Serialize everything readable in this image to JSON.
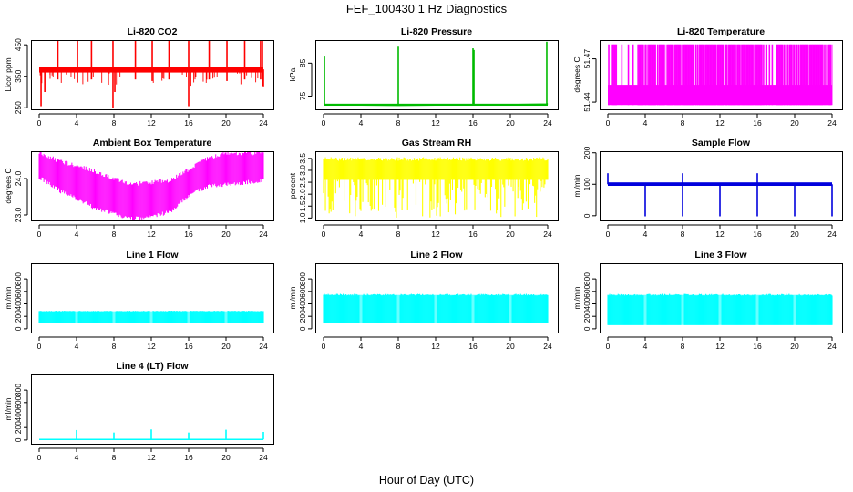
{
  "figure": {
    "title": "FEF_100430  1 Hz Diagnostics",
    "xlabel": "Hour of Day (UTC)"
  },
  "chart_data": [
    {
      "type": "line",
      "title": "Li-820 CO2",
      "ylabel": "Licor ppm",
      "color": "#ff0000",
      "xlim": [
        0,
        24
      ],
      "ylim": [
        245,
        465
      ],
      "xticks": [
        "0",
        "4",
        "8",
        "12",
        "16",
        "20",
        "24"
      ],
      "yticks": [
        {
          "v": 250,
          "l": "250"
        },
        {
          "v": 350,
          "l": "350"
        },
        {
          "v": 450,
          "l": "450"
        }
      ],
      "baseline": [
        [
          0,
          372
        ],
        [
          24,
          372
        ]
      ],
      "band": [
        362,
        380
      ],
      "spikes": [
        {
          "x": 0.2,
          "lo": 255,
          "hi": 372
        },
        {
          "x": 0.6,
          "lo": 300,
          "hi": 380
        },
        {
          "x": 2.0,
          "lo": 340,
          "hi": 462
        },
        {
          "x": 4.1,
          "lo": 330,
          "hi": 462
        },
        {
          "x": 5.6,
          "lo": 340,
          "hi": 462
        },
        {
          "x": 7.9,
          "lo": 250,
          "hi": 462
        },
        {
          "x": 8.1,
          "lo": 300,
          "hi": 380
        },
        {
          "x": 10.3,
          "lo": 340,
          "hi": 462
        },
        {
          "x": 12.1,
          "lo": 335,
          "hi": 462
        },
        {
          "x": 13.9,
          "lo": 340,
          "hi": 462
        },
        {
          "x": 16.0,
          "lo": 255,
          "hi": 462
        },
        {
          "x": 16.2,
          "lo": 320,
          "hi": 380
        },
        {
          "x": 18.2,
          "lo": 340,
          "hi": 462
        },
        {
          "x": 20.1,
          "lo": 335,
          "hi": 462
        },
        {
          "x": 22.0,
          "lo": 340,
          "hi": 462
        },
        {
          "x": 23.7,
          "lo": 340,
          "hi": 462
        },
        {
          "x": 23.9,
          "lo": 320,
          "hi": 462
        },
        {
          "x": 24.0,
          "lo": 318,
          "hi": 372
        }
      ]
    },
    {
      "type": "line",
      "title": "Li-820 Pressure",
      "ylabel": "kPa",
      "color": "#00bb00",
      "xlim": [
        0,
        24
      ],
      "ylim": [
        71,
        92
      ],
      "xticks": [
        "0",
        "4",
        "8",
        "12",
        "16",
        "20",
        "24"
      ],
      "yticks": [
        {
          "v": 75,
          "l": "75"
        },
        {
          "v": 85,
          "l": "85"
        }
      ],
      "baseline": [
        [
          0,
          72.4
        ],
        [
          4,
          72.3
        ],
        [
          8,
          72.2
        ],
        [
          12,
          72.3
        ],
        [
          16,
          72.4
        ],
        [
          20,
          72.4
        ],
        [
          23.9,
          72.6
        ],
        [
          24,
          72.8
        ]
      ],
      "band": [
        72.1,
        72.7
      ],
      "spikes": [
        {
          "x": 0.1,
          "lo": 72.3,
          "hi": 87.0
        },
        {
          "x": 8.0,
          "lo": 72.2,
          "hi": 90.0
        },
        {
          "x": 16.0,
          "lo": 72.3,
          "hi": 89.5
        },
        {
          "x": 16.1,
          "lo": 72.3,
          "hi": 89.0
        },
        {
          "x": 23.9,
          "lo": 72.5,
          "hi": 91.5
        }
      ]
    },
    {
      "type": "line",
      "title": "Li-820 Temperature",
      "ylabel": "degrees C",
      "color": "#ff00ff",
      "xlim": [
        0,
        24
      ],
      "ylim": [
        51.435,
        51.483
      ],
      "xticks": [
        "0",
        "4",
        "8",
        "12",
        "16",
        "20",
        "24"
      ],
      "yticks": [
        {
          "v": 51.44,
          "l": "51.44"
        },
        {
          "v": 51.47,
          "l": "51.47"
        }
      ],
      "band": [
        51.438,
        51.452
      ],
      "bandRange": [
        0,
        24
      ],
      "fillTop": 51.48,
      "fillRanges": [
        [
          0.4,
          1.0
        ],
        [
          3.2,
          16.8
        ],
        [
          18.0,
          24.0
        ]
      ],
      "spikes": [
        {
          "x": 0.1,
          "lo": 51.438,
          "hi": 51.48
        },
        {
          "x": 1.5,
          "lo": 51.438,
          "hi": 51.48
        },
        {
          "x": 2.2,
          "lo": 51.438,
          "hi": 51.48
        },
        {
          "x": 2.7,
          "lo": 51.438,
          "hi": 51.48
        },
        {
          "x": 17.0,
          "lo": 51.438,
          "hi": 51.48
        },
        {
          "x": 17.3,
          "lo": 51.438,
          "hi": 51.48
        },
        {
          "x": 17.6,
          "lo": 51.438,
          "hi": 51.48
        }
      ]
    },
    {
      "type": "line",
      "title": "Ambient Box Temperature",
      "ylabel": "degrees C",
      "color": "#ff00ff",
      "xlim": [
        0,
        24
      ],
      "ylim": [
        22.85,
        24.75
      ],
      "xticks": [
        "0",
        "4",
        "8",
        "12",
        "16",
        "20",
        "24"
      ],
      "yticks": [
        {
          "v": 23.0,
          "l": "23.0"
        },
        {
          "v": 24.0,
          "l": "24.0"
        }
      ],
      "envelopeUpper": [
        [
          0,
          24.7
        ],
        [
          2,
          24.5
        ],
        [
          4,
          24.35
        ],
        [
          6,
          24.2
        ],
        [
          8,
          24.0
        ],
        [
          10,
          23.85
        ],
        [
          12,
          23.9
        ],
        [
          14,
          23.95
        ],
        [
          16,
          24.25
        ],
        [
          18,
          24.55
        ],
        [
          20,
          24.7
        ],
        [
          24,
          24.7
        ]
      ],
      "envelopeLower": [
        [
          0,
          24.1
        ],
        [
          2,
          23.75
        ],
        [
          4,
          23.5
        ],
        [
          6,
          23.25
        ],
        [
          8,
          23.1
        ],
        [
          10,
          22.95
        ],
        [
          12,
          23.0
        ],
        [
          14,
          23.15
        ],
        [
          16,
          23.6
        ],
        [
          18,
          23.85
        ],
        [
          20,
          23.9
        ],
        [
          24,
          24.0
        ]
      ],
      "noise": 0.12
    },
    {
      "type": "line",
      "title": "Gas Stream RH",
      "ylabel": "percent",
      "color": "#ffff00",
      "xlim": [
        0,
        24
      ],
      "ylim": [
        0.9,
        3.8
      ],
      "xticks": [
        "0",
        "4",
        "8",
        "12",
        "16",
        "20",
        "24"
      ],
      "yticks": [
        {
          "v": 1.0,
          "l": "1.0"
        },
        {
          "v": 1.5,
          "l": "1.5"
        },
        {
          "v": 2.0,
          "l": "2.0"
        },
        {
          "v": 2.5,
          "l": "2.5"
        },
        {
          "v": 3.0,
          "l": "3.0"
        },
        {
          "v": 3.5,
          "l": "3.5"
        }
      ],
      "fill": [
        2.6,
        3.55
      ],
      "dips": [
        1.0,
        2.6
      ]
    },
    {
      "type": "line",
      "title": "Sample Flow",
      "ylabel": "ml/min",
      "color": "#0000dd",
      "xlim": [
        0,
        24
      ],
      "ylim": [
        -15,
        205
      ],
      "xticks": [
        "0",
        "4",
        "8",
        "12",
        "16",
        "20",
        "24"
      ],
      "yticks": [
        {
          "v": 0,
          "l": "0"
        },
        {
          "v": 100,
          "l": "100"
        },
        {
          "v": 200,
          "l": "200"
        }
      ],
      "baseline": [
        [
          0,
          100
        ],
        [
          24,
          100
        ]
      ],
      "band": [
        95,
        106
      ],
      "spikes": [
        {
          "x": 0.0,
          "lo": 100,
          "hi": 135
        },
        {
          "x": 4.0,
          "lo": -2,
          "hi": 100
        },
        {
          "x": 8.0,
          "lo": -2,
          "hi": 135
        },
        {
          "x": 12.0,
          "lo": -2,
          "hi": 100
        },
        {
          "x": 16.0,
          "lo": -2,
          "hi": 135
        },
        {
          "x": 20.0,
          "lo": -2,
          "hi": 100
        },
        {
          "x": 24.0,
          "lo": -2,
          "hi": 100
        }
      ]
    },
    {
      "type": "line",
      "title": "Line 1 Flow",
      "ylabel": "ml/min",
      "color": "#00ffff",
      "xlim": [
        0,
        24
      ],
      "ylim": [
        -60,
        1050
      ],
      "xticks": [
        "0",
        "4",
        "8",
        "12",
        "16",
        "20",
        "24"
      ],
      "yticks": [
        {
          "v": 0,
          "l": "0"
        },
        {
          "v": 200,
          "l": "200"
        },
        {
          "v": 400,
          "l": "400"
        },
        {
          "v": 600,
          "l": "600"
        },
        {
          "v": 800,
          "l": "800"
        }
      ],
      "fill": [
        100,
        290
      ],
      "gaps": [
        4,
        8,
        12,
        16,
        20
      ]
    },
    {
      "type": "line",
      "title": "Line 2 Flow",
      "ylabel": "ml/min",
      "color": "#00ffff",
      "xlim": [
        0,
        24
      ],
      "ylim": [
        -60,
        1050
      ],
      "xticks": [
        "0",
        "4",
        "8",
        "12",
        "16",
        "20",
        "24"
      ],
      "yticks": [
        {
          "v": 0,
          "l": "0"
        },
        {
          "v": 200,
          "l": "200"
        },
        {
          "v": 400,
          "l": "400"
        },
        {
          "v": 600,
          "l": "600"
        },
        {
          "v": 800,
          "l": "800"
        }
      ],
      "fill": [
        100,
        560
      ],
      "gaps": [
        4,
        8,
        12,
        16,
        20
      ]
    },
    {
      "type": "line",
      "title": "Line 3 Flow",
      "ylabel": "ml/min",
      "color": "#00ffff",
      "xlim": [
        0,
        24
      ],
      "ylim": [
        -60,
        1050
      ],
      "xticks": [
        "0",
        "4",
        "8",
        "12",
        "16",
        "20",
        "24"
      ],
      "yticks": [
        {
          "v": 0,
          "l": "0"
        },
        {
          "v": 200,
          "l": "200"
        },
        {
          "v": 400,
          "l": "400"
        },
        {
          "v": 600,
          "l": "600"
        },
        {
          "v": 800,
          "l": "800"
        }
      ],
      "fill": [
        60,
        560
      ],
      "gaps": [
        4,
        8,
        12,
        16,
        20
      ]
    },
    {
      "type": "line",
      "title": "Line 4 (LT) Flow",
      "ylabel": "ml/min",
      "color": "#00ffff",
      "xlim": [
        0,
        24
      ],
      "ylim": [
        -60,
        1050
      ],
      "xticks": [
        "0",
        "4",
        "8",
        "12",
        "16",
        "20",
        "24"
      ],
      "yticks": [
        {
          "v": 0,
          "l": "0"
        },
        {
          "v": 200,
          "l": "200"
        },
        {
          "v": 400,
          "l": "400"
        },
        {
          "v": 600,
          "l": "600"
        },
        {
          "v": 800,
          "l": "800"
        }
      ],
      "baseline": [
        [
          0,
          10
        ],
        [
          24,
          10
        ]
      ],
      "band": [
        5,
        18
      ],
      "spikes": [
        {
          "x": 4.0,
          "lo": 10,
          "hi": 160
        },
        {
          "x": 8.0,
          "lo": 10,
          "hi": 120
        },
        {
          "x": 12.0,
          "lo": 10,
          "hi": 170
        },
        {
          "x": 16.0,
          "lo": 10,
          "hi": 120
        },
        {
          "x": 20.0,
          "lo": 10,
          "hi": 165
        },
        {
          "x": 24.0,
          "lo": 10,
          "hi": 130
        }
      ]
    }
  ]
}
